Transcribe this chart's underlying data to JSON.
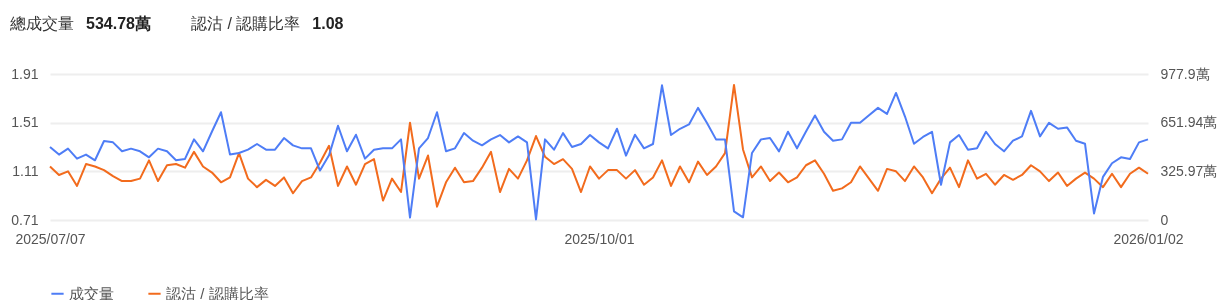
{
  "chart_data": {
    "type": "line",
    "annotations": [
      "總成交量",
      "534.78萬",
      "認沽 / 認購比率",
      "1.08"
    ],
    "categories": [
      "2025/07/07",
      null,
      null,
      null,
      null,
      null,
      null,
      null,
      null,
      null,
      null,
      null,
      null,
      null,
      null,
      null,
      null,
      null,
      null,
      null,
      null,
      null,
      null,
      null,
      null,
      null,
      null,
      null,
      null,
      null,
      null,
      null,
      null,
      null,
      null,
      null,
      null,
      null,
      null,
      null,
      null,
      null,
      null,
      null,
      null,
      null,
      null,
      null,
      null,
      null,
      null,
      null,
      null,
      null,
      null,
      null,
      null,
      null,
      null,
      null,
      null,
      "2025/10/01",
      null,
      null,
      null,
      null,
      null,
      null,
      null,
      null,
      null,
      null,
      null,
      null,
      null,
      null,
      null,
      null,
      null,
      null,
      null,
      null,
      null,
      null,
      null,
      null,
      null,
      null,
      null,
      null,
      null,
      null,
      null,
      null,
      null,
      null,
      null,
      null,
      null,
      null,
      null,
      null,
      null,
      null,
      null,
      null,
      null,
      null,
      null,
      null,
      null,
      null,
      null,
      null,
      null,
      null,
      null,
      null,
      null,
      null,
      null,
      null,
      "2026/01/02"
    ],
    "series": [
      {
        "name": "成交量",
        "color": "#4e7df6",
        "axis": "y2",
        "values": [
          489,
          438,
          478,
          411,
          438,
          400,
          529,
          520,
          460,
          478,
          460,
          420,
          478,
          460,
          400,
          409,
          540,
          460,
          593,
          722,
          438,
          449,
          471,
          509,
          471,
          471,
          549,
          500,
          480,
          480,
          331,
          433,
          631,
          460,
          571,
          411,
          471,
          480,
          480,
          540,
          16,
          480,
          549,
          722,
          460,
          480,
          582,
          531,
          500,
          540,
          569,
          520,
          560,
          520,
          4,
          540,
          471,
          582,
          489,
          509,
          569,
          520,
          480,
          611,
          431,
          571,
          480,
          509,
          902,
          569,
          611,
          640,
          751,
          649,
          540,
          540,
          58,
          18,
          449,
          540,
          549,
          460,
          591,
          480,
          593,
          700,
          591,
          531,
          540,
          651,
          651,
          702,
          751,
          711,
          851,
          693,
          511,
          556,
          591,
          236,
          520,
          569,
          471,
          480,
          591,
          509,
          460,
          531,
          560,
          731,
          560,
          651,
          611,
          620,
          531,
          511,
          44,
          289,
          380,
          420,
          409,
          520,
          540
        ]
      },
      {
        "name": "認沽 / 認購比率",
        "color": "#f26b1d",
        "axis": "y",
        "values": [
          1.15,
          1.08,
          1.11,
          0.99,
          1.17,
          1.15,
          1.12,
          1.07,
          1.03,
          1.03,
          1.05,
          1.2,
          1.03,
          1.16,
          1.17,
          1.14,
          1.27,
          1.15,
          1.1,
          1.02,
          1.06,
          1.26,
          1.05,
          0.98,
          1.04,
          0.99,
          1.06,
          0.93,
          1.03,
          1.06,
          1.18,
          1.32,
          0.99,
          1.15,
          1.0,
          1.17,
          1.21,
          0.87,
          1.05,
          0.94,
          1.51,
          1.05,
          1.24,
          0.82,
          1.02,
          1.14,
          1.02,
          1.03,
          1.14,
          1.27,
          0.94,
          1.13,
          1.05,
          1.2,
          1.4,
          1.23,
          1.17,
          1.21,
          1.13,
          0.94,
          1.15,
          1.05,
          1.12,
          1.12,
          1.05,
          1.12,
          1.0,
          1.06,
          1.2,
          0.99,
          1.15,
          1.02,
          1.19,
          1.08,
          1.15,
          1.26,
          1.82,
          1.29,
          1.06,
          1.15,
          1.03,
          1.1,
          1.02,
          1.06,
          1.16,
          1.2,
          1.09,
          0.95,
          0.97,
          1.02,
          1.15,
          1.05,
          0.95,
          1.13,
          1.11,
          1.03,
          1.15,
          1.06,
          0.93,
          1.05,
          1.14,
          0.98,
          1.2,
          1.05,
          1.09,
          1.0,
          1.08,
          1.04,
          1.08,
          1.16,
          1.11,
          1.03,
          1.1,
          0.99,
          1.05,
          1.1,
          1.05,
          0.98,
          1.09,
          0.98,
          1.09,
          1.14,
          1.09
        ]
      }
    ],
    "ylim": [
      0.71,
      1.91
    ],
    "yticks": [
      0.71,
      1.11,
      1.51,
      1.91
    ],
    "y2lim": [
      0,
      977.9
    ],
    "y2ticks": [
      0,
      {
        "value": 325.97,
        "label": "325.97萬"
      },
      {
        "value": 651.94,
        "label": "651.94萬"
      },
      {
        "value": 977.9,
        "label": "977.9萬"
      }
    ],
    "grid": "y",
    "legend": "bottom"
  }
}
